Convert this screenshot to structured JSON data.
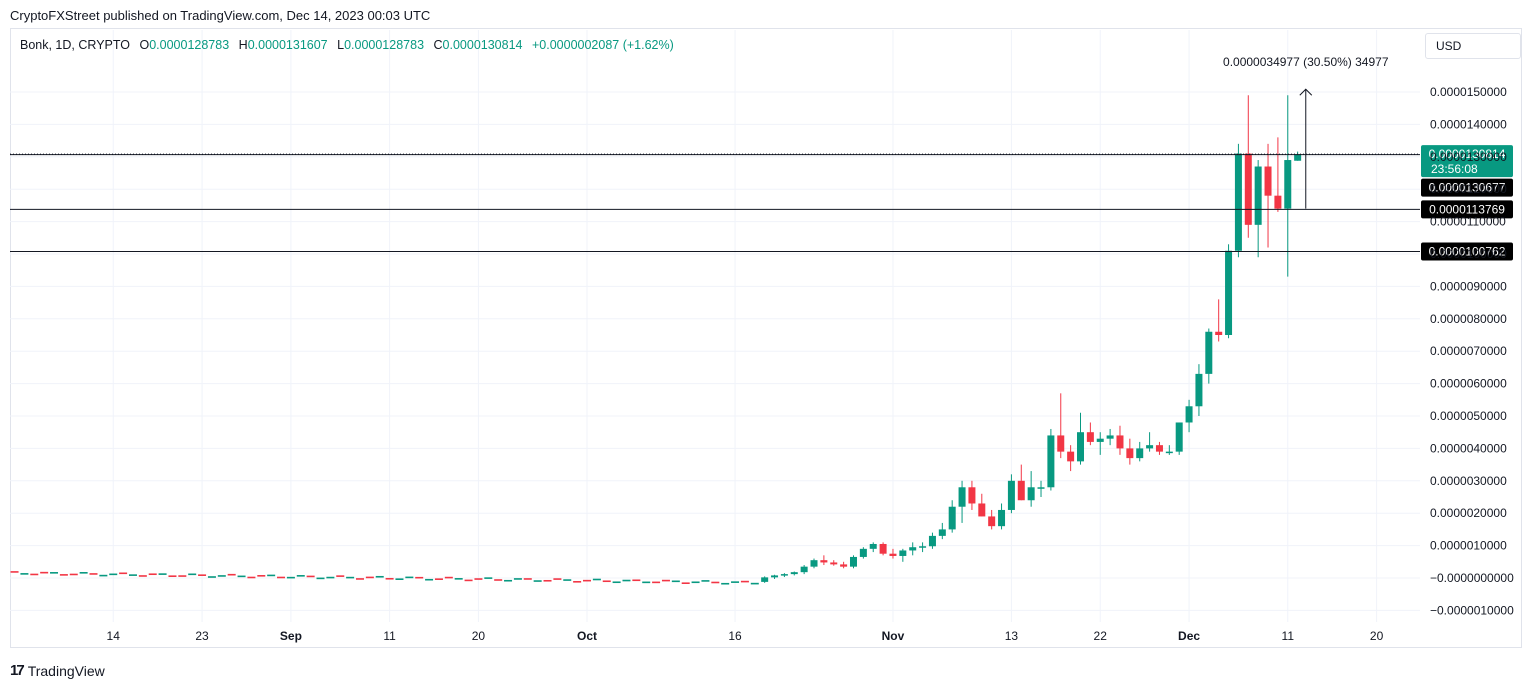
{
  "publisher": "CryptoFXStreet published on TradingView.com, Dec 14, 2023 00:03 UTC",
  "legend": {
    "symbol": "Bonk, 1D, CRYPTO",
    "o_label": "O",
    "o_value": "0.0000128783",
    "h_label": "H",
    "h_value": "0.0000131607",
    "l_label": "L",
    "l_value": "0.0000128783",
    "c_label": "C",
    "c_value": "0.0000130814",
    "change": "+0.0000002087 (+1.62%)"
  },
  "currency": "USD",
  "footer": {
    "brand": "TradingView"
  },
  "colors": {
    "up": "#089981",
    "down": "#f23645",
    "grid": "#f0f3fa",
    "text": "#131722",
    "label_bg": "#000000"
  },
  "chart_data": {
    "type": "candlestick",
    "title": "",
    "ylim": [
      -1.2e-06,
      1.62e-05
    ],
    "y_ticks": [
      "0.0000150000",
      "0.0000140000",
      "0.0000130000",
      "0.0000120000",
      "0.0000110000",
      "0.0000100000",
      "0.0000090000",
      "0.0000080000",
      "0.0000070000",
      "0.0000060000",
      "0.0000050000",
      "0.0000040000",
      "0.0000030000",
      "0.0000020000",
      "0.0000010000",
      "−0.0000000000",
      "−0.0000010000"
    ],
    "y_tick_values": [
      1.5e-05,
      1.4e-05,
      1.3e-05,
      1.2e-05,
      1.1e-05,
      1e-05,
      9e-06,
      8e-06,
      7e-06,
      6e-06,
      5e-06,
      4e-06,
      3e-06,
      2e-06,
      1e-06,
      0,
      -1e-06
    ],
    "x_ticks": [
      {
        "label": "14",
        "day": -48,
        "bold": false
      },
      {
        "label": "23",
        "day": -39,
        "bold": false
      },
      {
        "label": "Sep",
        "day": -30,
        "bold": true
      },
      {
        "label": "11",
        "day": -20,
        "bold": false
      },
      {
        "label": "20",
        "day": -11,
        "bold": false
      },
      {
        "label": "Oct",
        "day": 0,
        "bold": true
      },
      {
        "label": "16",
        "day": 15,
        "bold": false
      },
      {
        "label": "Nov",
        "day": 31,
        "bold": true
      },
      {
        "label": "13",
        "day": 43,
        "bold": false
      },
      {
        "label": "22",
        "day": 52,
        "bold": false
      },
      {
        "label": "Dec",
        "day": 61,
        "bold": true
      },
      {
        "label": "11",
        "day": 71,
        "bold": false
      },
      {
        "label": "20",
        "day": 80,
        "bold": false
      }
    ],
    "x_range_days": [
      -58,
      83
    ],
    "flat_period": {
      "start_day": -58,
      "end_day": 17,
      "start_value": 1.5e-07,
      "end_value": -1.5e-07
    },
    "candles": [
      {
        "day": 18,
        "o": -1.2e-07,
        "h": 5e-08,
        "l": -1.5e-07,
        "c": 2e-08
      },
      {
        "day": 19,
        "o": 2e-08,
        "h": 1e-07,
        "l": -3e-08,
        "c": 8e-08
      },
      {
        "day": 20,
        "o": 8e-08,
        "h": 1.5e-07,
        "l": 3e-08,
        "c": 1.2e-07
      },
      {
        "day": 21,
        "o": 1.2e-07,
        "h": 2e-07,
        "l": 8e-08,
        "c": 1.8e-07
      },
      {
        "day": 22,
        "o": 1.8e-07,
        "h": 4e-07,
        "l": 1.2e-07,
        "c": 3.5e-07
      },
      {
        "day": 23,
        "o": 3.5e-07,
        "h": 6e-07,
        "l": 3e-07,
        "c": 5.5e-07
      },
      {
        "day": 24,
        "o": 5.5e-07,
        "h": 7e-07,
        "l": 4e-07,
        "c": 4.8e-07
      },
      {
        "day": 25,
        "o": 4.8e-07,
        "h": 5.5e-07,
        "l": 3.8e-07,
        "c": 4.2e-07
      },
      {
        "day": 26,
        "o": 4.2e-07,
        "h": 5e-07,
        "l": 3e-07,
        "c": 3.5e-07
      },
      {
        "day": 27,
        "o": 3.5e-07,
        "h": 7e-07,
        "l": 3e-07,
        "c": 6.5e-07
      },
      {
        "day": 28,
        "o": 6.5e-07,
        "h": 9.5e-07,
        "l": 6e-07,
        "c": 9e-07
      },
      {
        "day": 29,
        "o": 9e-07,
        "h": 1.1e-06,
        "l": 8e-07,
        "c": 1.05e-06
      },
      {
        "day": 30,
        "o": 1.05e-06,
        "h": 1.1e-06,
        "l": 7e-07,
        "c": 7.5e-07
      },
      {
        "day": 31,
        "o": 7.5e-07,
        "h": 9e-07,
        "l": 6e-07,
        "c": 6.8e-07
      },
      {
        "day": 32,
        "o": 6.8e-07,
        "h": 9e-07,
        "l": 5e-07,
        "c": 8.5e-07
      },
      {
        "day": 33,
        "o": 8.5e-07,
        "h": 1.1e-06,
        "l": 7e-07,
        "c": 9.5e-07
      },
      {
        "day": 34,
        "o": 9.5e-07,
        "h": 1.1e-06,
        "l": 8e-07,
        "c": 9.8e-07
      },
      {
        "day": 35,
        "o": 9.8e-07,
        "h": 1.4e-06,
        "l": 9e-07,
        "c": 1.3e-06
      },
      {
        "day": 36,
        "o": 1.3e-06,
        "h": 1.7e-06,
        "l": 1.2e-06,
        "c": 1.5e-06
      },
      {
        "day": 37,
        "o": 1.5e-06,
        "h": 2.4e-06,
        "l": 1.4e-06,
        "c": 2.2e-06
      },
      {
        "day": 38,
        "o": 2.2e-06,
        "h": 3e-06,
        "l": 1.7e-06,
        "c": 2.8e-06
      },
      {
        "day": 39,
        "o": 2.8e-06,
        "h": 3e-06,
        "l": 2.1e-06,
        "c": 2.3e-06
      },
      {
        "day": 40,
        "o": 2.3e-06,
        "h": 2.6e-06,
        "l": 1.9e-06,
        "c": 1.9e-06
      },
      {
        "day": 41,
        "o": 1.9e-06,
        "h": 2.1e-06,
        "l": 1.5e-06,
        "c": 1.6e-06
      },
      {
        "day": 42,
        "o": 1.6e-06,
        "h": 2.3e-06,
        "l": 1.5e-06,
        "c": 2.1e-06
      },
      {
        "day": 43,
        "o": 2.1e-06,
        "h": 3.2e-06,
        "l": 2e-06,
        "c": 3e-06
      },
      {
        "day": 44,
        "o": 3e-06,
        "h": 3.5e-06,
        "l": 2.4e-06,
        "c": 2.4e-06
      },
      {
        "day": 45,
        "o": 2.4e-06,
        "h": 3.3e-06,
        "l": 2.2e-06,
        "c": 2.8e-06
      },
      {
        "day": 46,
        "o": 2.8e-06,
        "h": 3e-06,
        "l": 2.5e-06,
        "c": 2.8e-06
      },
      {
        "day": 47,
        "o": 2.8e-06,
        "h": 4.6e-06,
        "l": 2.7e-06,
        "c": 4.4e-06
      },
      {
        "day": 48,
        "o": 4.4e-06,
        "h": 5.7e-06,
        "l": 3.7e-06,
        "c": 3.9e-06
      },
      {
        "day": 49,
        "o": 3.9e-06,
        "h": 4.1e-06,
        "l": 3.3e-06,
        "c": 3.6e-06
      },
      {
        "day": 50,
        "o": 3.6e-06,
        "h": 5.1e-06,
        "l": 3.5e-06,
        "c": 4.5e-06
      },
      {
        "day": 51,
        "o": 4.5e-06,
        "h": 4.8e-06,
        "l": 4.1e-06,
        "c": 4.2e-06
      },
      {
        "day": 52,
        "o": 4.2e-06,
        "h": 4.5e-06,
        "l": 3.8e-06,
        "c": 4.3e-06
      },
      {
        "day": 53,
        "o": 4.3e-06,
        "h": 4.6e-06,
        "l": 4.1e-06,
        "c": 4.4e-06
      },
      {
        "day": 54,
        "o": 4.4e-06,
        "h": 4.7e-06,
        "l": 3.8e-06,
        "c": 4e-06
      },
      {
        "day": 55,
        "o": 4e-06,
        "h": 4.3e-06,
        "l": 3.5e-06,
        "c": 3.7e-06
      },
      {
        "day": 56,
        "o": 3.7e-06,
        "h": 4.2e-06,
        "l": 3.6e-06,
        "c": 4e-06
      },
      {
        "day": 57,
        "o": 4e-06,
        "h": 4.5e-06,
        "l": 3.9e-06,
        "c": 4.1e-06
      },
      {
        "day": 58,
        "o": 4.1e-06,
        "h": 4.2e-06,
        "l": 3.8e-06,
        "c": 3.9e-06
      },
      {
        "day": 59,
        "o": 3.9e-06,
        "h": 4.1e-06,
        "l": 3.8e-06,
        "c": 3.9e-06
      },
      {
        "day": 60,
        "o": 3.9e-06,
        "h": 4.8e-06,
        "l": 3.8e-06,
        "c": 4.8e-06
      },
      {
        "day": 61,
        "o": 4.8e-06,
        "h": 5.5e-06,
        "l": 4.5e-06,
        "c": 5.3e-06
      },
      {
        "day": 62,
        "o": 5.3e-06,
        "h": 6.6e-06,
        "l": 5e-06,
        "c": 6.3e-06
      },
      {
        "day": 63,
        "o": 6.3e-06,
        "h": 7.7e-06,
        "l": 6e-06,
        "c": 7.6e-06
      },
      {
        "day": 64,
        "o": 7.6e-06,
        "h": 8.6e-06,
        "l": 7.3e-06,
        "c": 7.5e-06
      },
      {
        "day": 65,
        "o": 7.5e-06,
        "h": 1.03e-05,
        "l": 7.4e-06,
        "c": 1.01e-05
      },
      {
        "day": 66,
        "o": 1.01e-05,
        "h": 1.34e-05,
        "l": 9.9e-06,
        "c": 1.31e-05
      },
      {
        "day": 67,
        "o": 1.31e-05,
        "h": 1.49e-05,
        "l": 1.05e-05,
        "c": 1.09e-05
      },
      {
        "day": 68,
        "o": 1.09e-05,
        "h": 1.29e-05,
        "l": 9.9e-06,
        "c": 1.27e-05
      },
      {
        "day": 69,
        "o": 1.27e-05,
        "h": 1.34e-05,
        "l": 1.02e-05,
        "c": 1.18e-05
      },
      {
        "day": 70,
        "o": 1.18e-05,
        "h": 1.36e-05,
        "l": 1.13e-05,
        "c": 1.14e-05
      },
      {
        "day": 71,
        "o": 1.14e-05,
        "h": 1.49e-05,
        "l": 9.3e-06,
        "c": 1.29e-05
      },
      {
        "day": 72,
        "o": 1.28783e-05,
        "h": 1.31607e-05,
        "l": 1.28783e-05,
        "c": 1.30814e-05
      }
    ],
    "horizontal_levels": [
      {
        "value": 1.30814e-05,
        "label": "0.0000130814",
        "style": "dotted",
        "color": "#089981",
        "sublabel": "23:56:08"
      },
      {
        "value": 1.30677e-05,
        "label": "0.0000130677",
        "style": "solid",
        "color": "#000000"
      },
      {
        "value": 1.13769e-05,
        "label": "0.0000113769",
        "style": "solid",
        "color": "#000000"
      },
      {
        "value": 1.00762e-05,
        "label": "0.0000100762",
        "style": "solid",
        "color": "#000000"
      }
    ],
    "measure": {
      "day": 71,
      "from": 1.14e-05,
      "to": 1.49e-05,
      "label": "0.0000034977 (30.50%) 34977"
    }
  }
}
